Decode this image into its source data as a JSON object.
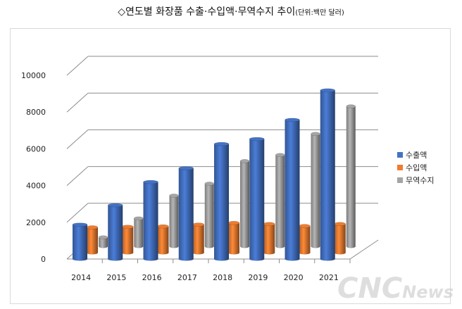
{
  "title": "◇연도별 화장품 수출·수입액·무역수지 추이",
  "unit": "(단위:백만 달러)",
  "watermark": {
    "main": "CNC",
    "sub": "News"
  },
  "chart_data": {
    "type": "bar",
    "style": "3d-cylinder",
    "title": "연도별 화장품 수출·수입액·무역수지 추이",
    "categories": [
      "2014",
      "2015",
      "2016",
      "2017",
      "2018",
      "2019",
      "2020",
      "2021"
    ],
    "series": [
      {
        "name": "수출액",
        "color": "#4472c4",
        "values": [
          1870,
          2930,
          4190,
          4940,
          6260,
          6530,
          7570,
          9180
        ]
      },
      {
        "name": "수입액",
        "color": "#ed7d31",
        "values": [
          1380,
          1410,
          1430,
          1530,
          1620,
          1560,
          1450,
          1560
        ]
      },
      {
        "name": "무역수지",
        "color": "#a5a5a5",
        "values": [
          490,
          1520,
          2760,
          3410,
          4640,
          4970,
          6120,
          7620
        ]
      }
    ],
    "yticks": [
      0,
      2000,
      4000,
      6000,
      8000,
      10000
    ],
    "ylim": [
      0,
      10000
    ],
    "legend": "right",
    "grid": true
  }
}
